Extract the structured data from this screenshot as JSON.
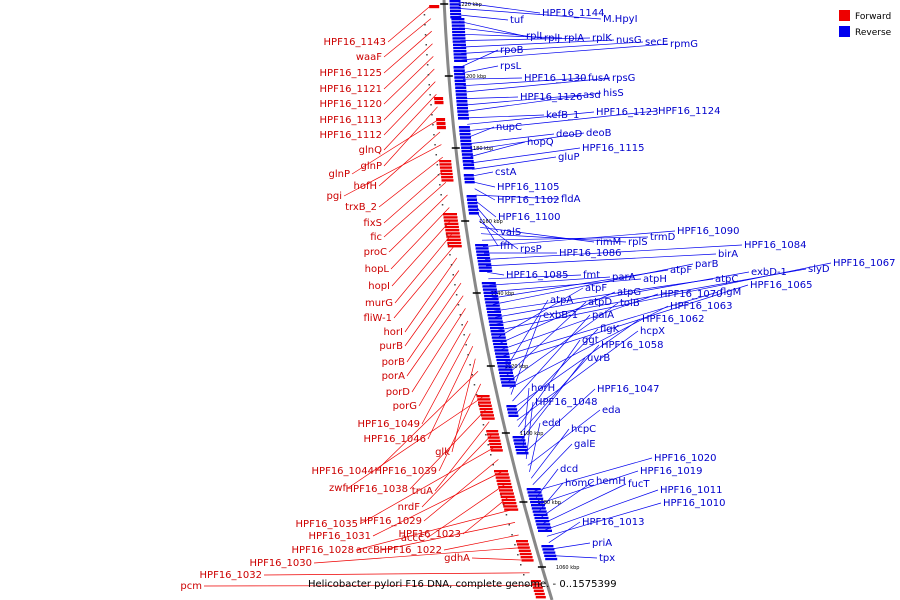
{
  "caption": "Helicobacter pylori F16 DNA, complete genome. - 0..1575399",
  "legend": {
    "forward": {
      "label": "Forward",
      "color": "#ee0000"
    },
    "reverse": {
      "label": "Reverse",
      "color": "#0000ee"
    }
  },
  "ticks": [
    "1220 kbp",
    "1200 kbp",
    "1180 kbp",
    "1160 kbp",
    "1140 kbp",
    "1120 kbp",
    "1100 kbp",
    "1080 kbp",
    "1060 kbp"
  ],
  "forward_genes": [
    "HPF16_1143",
    "waaF",
    "HPF16_1125",
    "HPF16_1121",
    "HPF16_1120",
    "HPF16_1113",
    "HPF16_1112",
    "glnQ",
    "glnP",
    "glnP",
    "hofH",
    "pgi",
    "trxB_2",
    "fixS",
    "fic",
    "proC",
    "hopL",
    "hopI",
    "murG",
    "fliW-1",
    "horI",
    "purB",
    "porB",
    "porA",
    "porD",
    "porG",
    "HPF16_1049",
    "HPF16_1046",
    "glk",
    "HPF16_1044",
    "HPF16_1039",
    "zwf",
    "HPF16_1038",
    "truA",
    "nrdF",
    "HPF16_1035",
    "HPF16_1029",
    "HPF16_1031",
    "accC",
    "HPF16_1023",
    "HPF16_1028",
    "accB",
    "HPF16_1022",
    "HPF16_1030",
    "gdhA",
    "HPF16_1032",
    "pcm"
  ],
  "reverse_genes": [
    "HPF16_1144",
    "M.HpyI",
    "tuf",
    "rplL",
    "rplJ",
    "rplA",
    "rplK",
    "nusG",
    "secE",
    "rpmG",
    "rpoB",
    "rpsL",
    "HPF16_1130",
    "fusA",
    "rpsG",
    "HPF16_1126",
    "asd",
    "hisS",
    "kefB_1",
    "HPF16_1123",
    "HPF16_1124",
    "nupC",
    "deoD",
    "deoB",
    "hopQ",
    "HPF16_1115",
    "gluP",
    "cstA",
    "HPF16_1105",
    "HPF16_1102",
    "fldA",
    "HPF16_1100",
    "valS",
    "ffh",
    "rpsP",
    "rimM",
    "rplS",
    "trmD",
    "HPF16_1090",
    "HPF16_1086",
    "HPF16_1084",
    "birA",
    "HPF16_1085",
    "fmt",
    "parA",
    "atpH",
    "atpF",
    "parB",
    "atpC",
    "exbD-1",
    "slyD",
    "HPF16_1067",
    "atpF",
    "atpG",
    "HPF16_1070",
    "flgM",
    "HPF16_1065",
    "atpA",
    "atpD",
    "tolB",
    "HPF16_1063",
    "exbB-1",
    "palA",
    "HPF16_1062",
    "flgK",
    "hcpX",
    "ggt",
    "HPF16_1058",
    "uvrB",
    "horH",
    "HPF16_1047",
    "HPF16_1048",
    "eda",
    "edd",
    "hcpC",
    "galE",
    "HPF16_1020",
    "dcd",
    "HPF16_1019",
    "homC",
    "hemH",
    "fucT",
    "HPF16_1011",
    "HPF16_1010",
    "HPF16_1013",
    "priA",
    "tpx"
  ]
}
